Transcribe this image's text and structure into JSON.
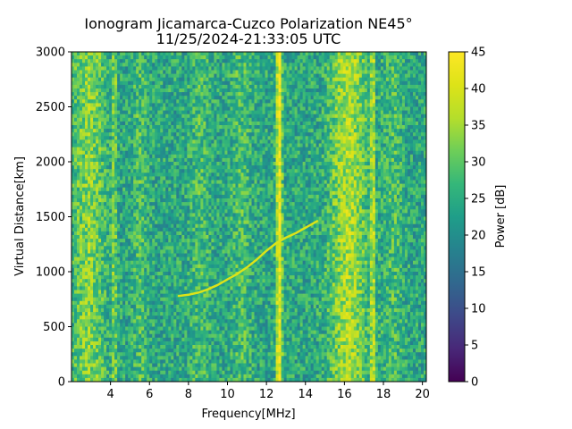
{
  "chart_data": {
    "type": "heatmap",
    "title": "Ionogram Jicamarca-Cuzco Polarization NE45°",
    "subtitle": "11/25/2024-21:33:05 UTC",
    "xlabel": "Frequency[MHz]",
    "ylabel": "Virtual Distance[km]",
    "xlim": [
      2.0,
      20.2
    ],
    "ylim": [
      0,
      3000
    ],
    "x_ticks": [
      4,
      6,
      8,
      10,
      12,
      14,
      16,
      18,
      20
    ],
    "y_ticks": [
      0,
      500,
      1000,
      1500,
      2000,
      2500,
      3000
    ],
    "colorbar": {
      "label": "Power [dB]",
      "range": [
        0,
        45
      ],
      "ticks": [
        0,
        5,
        10,
        15,
        20,
        25,
        30,
        35,
        40,
        45
      ],
      "colormap": "viridis"
    },
    "background_power_db": 24,
    "bright_bands": [
      {
        "freq_mhz": 2.9,
        "width_mhz": 0.8,
        "power_db": 33
      },
      {
        "freq_mhz": 4.2,
        "width_mhz": 0.1,
        "power_db": 33
      },
      {
        "freq_mhz": 5.5,
        "width_mhz": 0.35,
        "power_db": 28
      },
      {
        "freq_mhz": 8.6,
        "width_mhz": 0.5,
        "power_db": 28
      },
      {
        "freq_mhz": 10.7,
        "width_mhz": 0.5,
        "power_db": 28
      },
      {
        "freq_mhz": 12.65,
        "width_mhz": 0.15,
        "power_db": 44
      },
      {
        "freq_mhz": 16.2,
        "width_mhz": 0.9,
        "power_db": 36
      },
      {
        "freq_mhz": 17.45,
        "width_mhz": 0.1,
        "power_db": 39
      },
      {
        "freq_mhz": 18.5,
        "width_mhz": 0.5,
        "power_db": 28
      }
    ],
    "trace": {
      "freq_mhz": [
        7.5,
        8.0,
        8.5,
        9.0,
        9.5,
        10.0,
        10.5,
        11.0,
        11.5,
        12.0,
        12.5,
        13.0,
        13.5,
        14.0,
        14.6
      ],
      "distance_km": [
        780,
        790,
        810,
        840,
        880,
        930,
        980,
        1040,
        1110,
        1190,
        1260,
        1310,
        1350,
        1400,
        1460
      ],
      "power_db": 40
    }
  }
}
